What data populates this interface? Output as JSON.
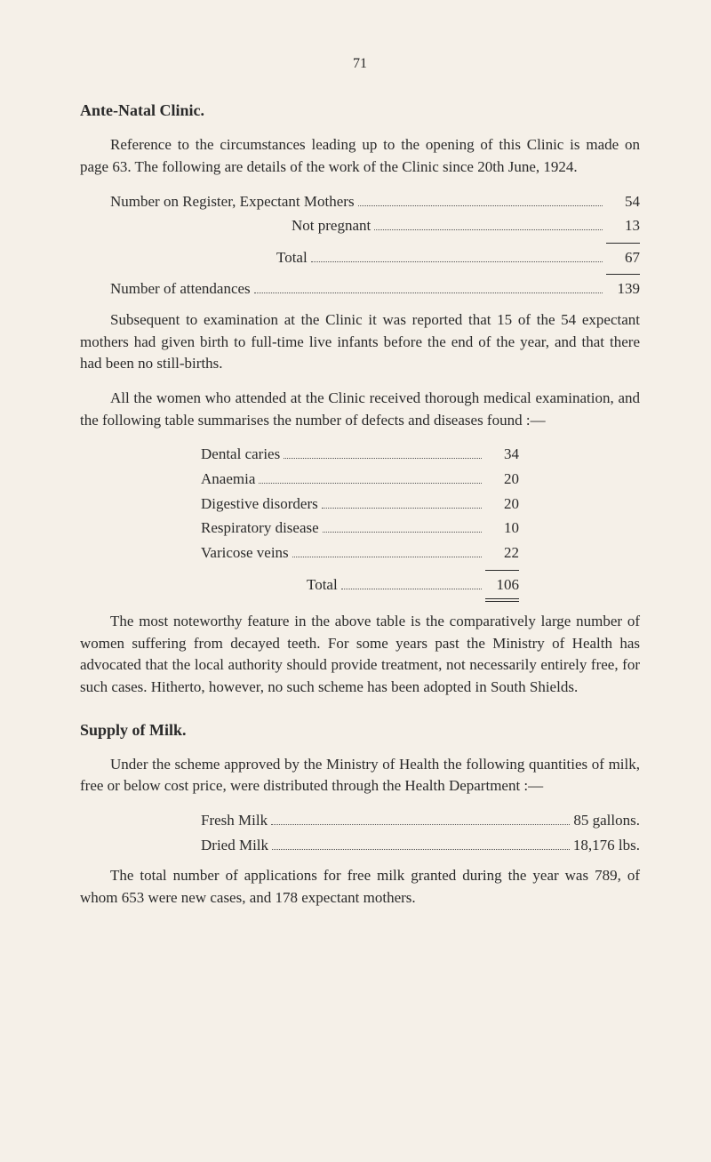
{
  "page": {
    "number": "71"
  },
  "anteNatal": {
    "header": "Ante-Natal Clinic.",
    "intro": "Reference to the circumstances leading up to the opening of this Clinic is made on page 63. The following are details of the work of the Clinic since 20th June, 1924.",
    "register": {
      "expectantLabel": "Number on Register, Expectant Mothers",
      "expectantValue": "54",
      "notPregnantLabel": "Not pregnant",
      "notPregnantValue": "13",
      "totalLabel": "Total",
      "totalValue": "67"
    },
    "attendances": {
      "label": "Number of attendances",
      "value": "139"
    },
    "subsequentPara": "Subsequent to examination at the Clinic it was reported that 15 of the 54 expectant mothers had given birth to full-time live infants before the end of the year, and that there had been no still-births.",
    "allWomenPara": "All the women who attended at the Clinic received thorough medical examination, and the following table summarises the number of defects and diseases found :—",
    "defects": {
      "items": [
        {
          "label": "Dental caries",
          "value": "34"
        },
        {
          "label": "Anaemia",
          "value": "20"
        },
        {
          "label": "Digestive disorders",
          "value": "20"
        },
        {
          "label": "Respiratory disease",
          "value": "10"
        },
        {
          "label": "Varicose veins",
          "value": "22"
        }
      ],
      "totalLabel": "Total",
      "totalValue": "106"
    },
    "noteworthyPara": "The most noteworthy feature in the above table is the com­paratively large number of women suffering from decayed teeth. For some years past the Ministry of Health has advocated that the local authority should provide treatment, not necessarily entirely free, for such cases. Hitherto, however, no such scheme has been adopted in South Shields."
  },
  "milk": {
    "header": "Supply of Milk.",
    "intro": "Under the scheme approved by the Ministry of Health the following quantities of milk, free or below cost price, were dis­tributed through the Health Department :—",
    "items": [
      {
        "label": "Fresh Milk",
        "value": "85 gallons."
      },
      {
        "label": "Dried Milk",
        "value": "18,176 lbs."
      }
    ],
    "applicationsPara": "The total number of applications for free milk granted during the year was 789, of whom 653 were new cases, and 178 expectant mothers."
  }
}
